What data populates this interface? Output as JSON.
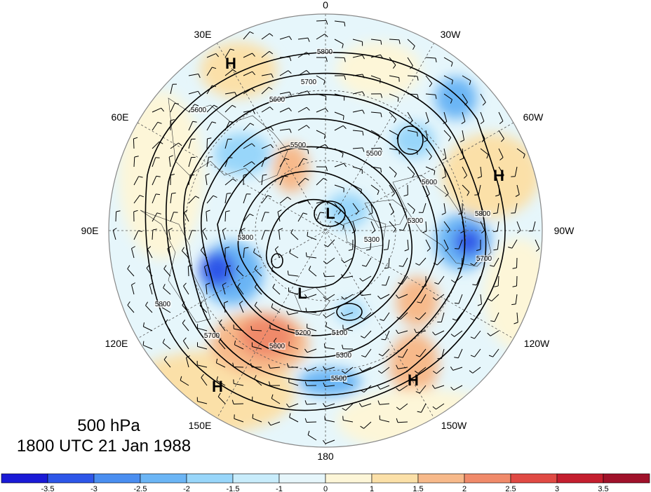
{
  "map": {
    "title_level": "500 hPa",
    "title_time": "1800 UTC 21 Jan 1988",
    "longitude_labels": [
      {
        "id": "lon-0",
        "text": "0"
      },
      {
        "id": "lon-30w",
        "text": "30W"
      },
      {
        "id": "lon-60w",
        "text": "60W"
      },
      {
        "id": "lon-90w",
        "text": "90W"
      },
      {
        "id": "lon-120w",
        "text": "120W"
      },
      {
        "id": "lon-150w",
        "text": "150W"
      },
      {
        "id": "lon-180",
        "text": "180"
      },
      {
        "id": "lon-150e",
        "text": "150E"
      },
      {
        "id": "lon-120e",
        "text": "120E"
      },
      {
        "id": "lon-90e",
        "text": "90E"
      },
      {
        "id": "lon-60e",
        "text": "60E"
      },
      {
        "id": "lon-30e",
        "text": "30E"
      }
    ],
    "pressure_centers": [
      "H",
      "H",
      "H",
      "H",
      "L",
      "L"
    ],
    "contour_labels": [
      "5800",
      "5700",
      "5600",
      "5600",
      "5500",
      "5500",
      "5300",
      "5300",
      "5300",
      "5200",
      "5100",
      "5300",
      "5500",
      "5600",
      "5700",
      "5800",
      "5700",
      "5600",
      "5800"
    ],
    "colorbar": {
      "tick_labels": [
        "-3.5",
        "-3",
        "-2.5",
        "-2",
        "-1.5",
        "-1",
        "0",
        "1",
        "1.5",
        "2",
        "2.5",
        "3",
        "3.5"
      ],
      "colors": [
        "#1a1ad6",
        "#2d56e8",
        "#4a8ef0",
        "#6bb5f5",
        "#98d6fa",
        "#c8ecfb",
        "#e6f6fb",
        "#fdf6d8",
        "#fbe0a8",
        "#f7b98a",
        "#f08a6a",
        "#e04a44",
        "#c41e2e",
        "#a0122a"
      ]
    }
  }
}
